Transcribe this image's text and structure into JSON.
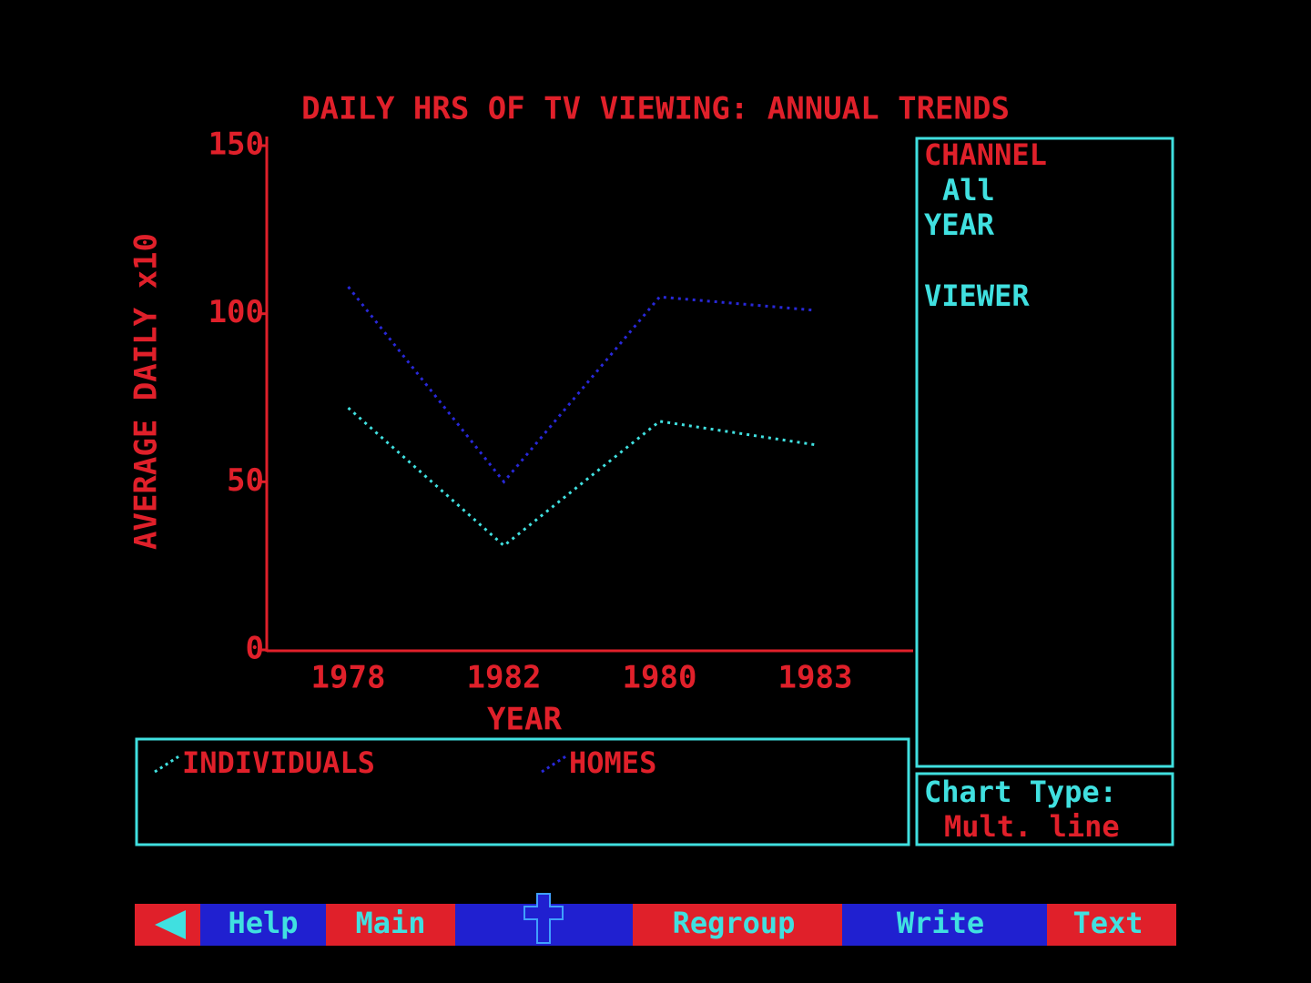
{
  "chart_data": {
    "type": "line",
    "title": "DAILY HRS OF TV VIEWING: ANNUAL TRENDS",
    "y_label": "AVERAGE DAILY  x10",
    "x_label": "YEAR",
    "categories": [
      "1978",
      "1982",
      "1980",
      "1983"
    ],
    "series": [
      {
        "name": "INDIVIDUALS",
        "color": "#40e0e0",
        "values": [
          72,
          31,
          68,
          61
        ]
      },
      {
        "name": "HOMES",
        "color": "#2828d8",
        "values": [
          108,
          50,
          105,
          101
        ]
      }
    ],
    "ylim": [
      0,
      150
    ],
    "yticks": [
      0,
      50,
      100,
      150
    ],
    "grid": false
  },
  "side_panel": {
    "channel_label": "CHANNEL",
    "channel_value": "All",
    "year_label": "YEAR",
    "viewer_label": "VIEWER",
    "chart_type_label": "Chart Type:",
    "chart_type_value": "Mult. line"
  },
  "menu": [
    "Help",
    "Main",
    "Regroup",
    "Write",
    "Text"
  ]
}
